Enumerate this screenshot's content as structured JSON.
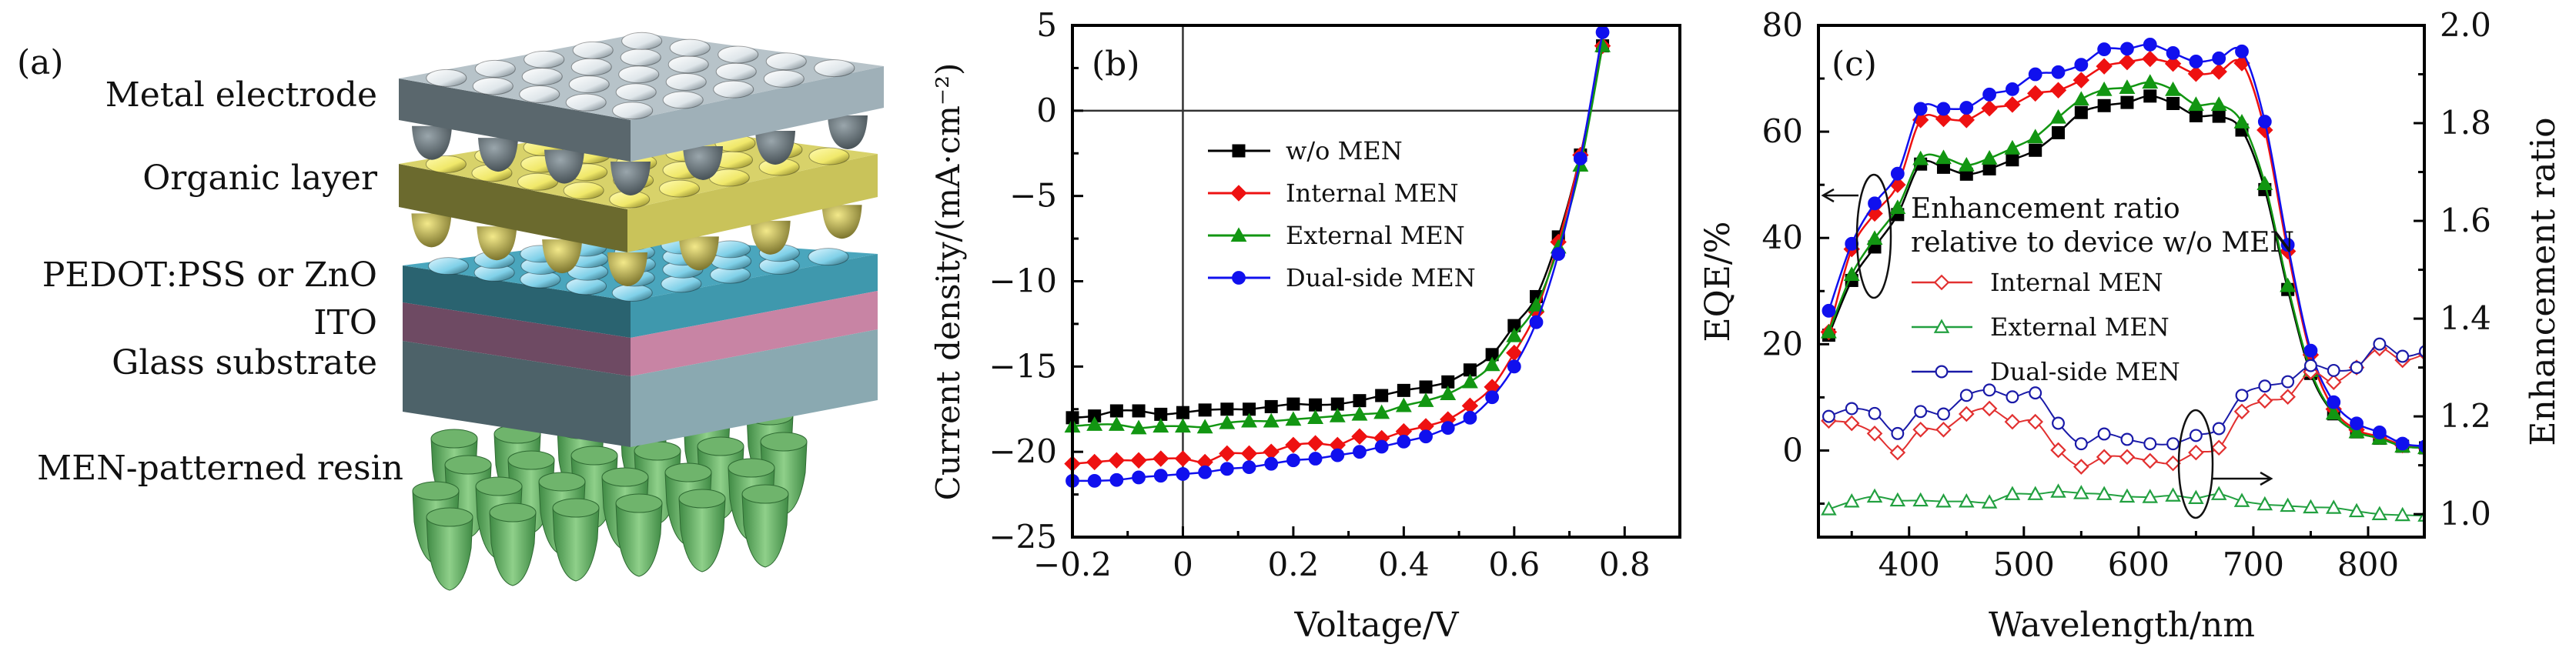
{
  "panel_a": {
    "tag": "(a)",
    "layers": [
      {
        "label": "Metal electrode",
        "color": "#9fb0b8"
      },
      {
        "label": "Organic layer",
        "color": "#cfc95a"
      },
      {
        "label": "PEDOT:PSS or ZnO",
        "color": "#3f98ad"
      },
      {
        "label": "ITO",
        "color": "#c884a4"
      },
      {
        "label": "Glass substrate",
        "color": "#8aa9b1"
      },
      {
        "label": "MEN-patterned resin",
        "color": "#6fb46c"
      }
    ]
  },
  "chart_data": [
    {
      "id": "b",
      "type": "line",
      "tag": "(b)",
      "title": "",
      "xlabel": "Voltage/V",
      "ylabel": "Current density/(mA·cm⁻²)",
      "xlim": [
        -0.2,
        0.9
      ],
      "ylim": [
        -25,
        5
      ],
      "xticks": [
        -0.2,
        0,
        0.2,
        0.4,
        0.6,
        0.8
      ],
      "xtick_labels": [
        "−0.2",
        "0",
        "0.2",
        "0.4",
        "0.6",
        "0.8"
      ],
      "yticks": [
        5,
        0,
        -5,
        -10,
        -15,
        -20,
        -25
      ],
      "ytick_labels": [
        "5",
        "0",
        "−5",
        "−10",
        "−15",
        "−20",
        "−25"
      ],
      "grid": false,
      "reference_lines": {
        "x": 0,
        "y": 0
      },
      "legend_position": "center",
      "x": [
        -0.2,
        -0.16,
        -0.12,
        -0.08,
        -0.04,
        0,
        0.04,
        0.08,
        0.12,
        0.16,
        0.2,
        0.24,
        0.28,
        0.32,
        0.36,
        0.4,
        0.44,
        0.48,
        0.52,
        0.56,
        0.6,
        0.64,
        0.68,
        0.72,
        0.76
      ],
      "series": [
        {
          "name": "w/o MEN",
          "color": "#000000",
          "marker": "square",
          "values": [
            -18.0,
            -17.9,
            -17.6,
            -17.6,
            -17.8,
            -17.7,
            -17.55,
            -17.5,
            -17.5,
            -17.35,
            -17.2,
            -17.25,
            -17.2,
            -17.0,
            -16.7,
            -16.4,
            -16.2,
            -15.9,
            -15.2,
            -14.3,
            -12.6,
            -10.9,
            -7.4,
            -2.6,
            3.8
          ]
        },
        {
          "name": "Internal MEN",
          "color": "#ee1111",
          "marker": "diamond",
          "values": [
            -20.7,
            -20.6,
            -20.5,
            -20.5,
            -20.4,
            -20.4,
            -20.6,
            -20.1,
            -20.1,
            -20.0,
            -19.6,
            -19.5,
            -19.6,
            -19.1,
            -19.2,
            -18.8,
            -18.5,
            -18.1,
            -17.3,
            -16.2,
            -14.2,
            -11.8,
            -7.7,
            -2.6,
            3.8
          ]
        },
        {
          "name": "External MEN",
          "color": "#129612",
          "marker": "triangle",
          "values": [
            -18.5,
            -18.4,
            -18.4,
            -18.6,
            -18.5,
            -18.5,
            -18.55,
            -18.3,
            -18.2,
            -18.2,
            -18.1,
            -18.0,
            -17.9,
            -17.8,
            -17.7,
            -17.3,
            -17.0,
            -16.6,
            -15.9,
            -14.9,
            -13.2,
            -11.4,
            -8.0,
            -3.2,
            3.8
          ]
        },
        {
          "name": "Dual-side MEN",
          "color": "#1010ee",
          "marker": "circle",
          "values": [
            -21.7,
            -21.7,
            -21.65,
            -21.5,
            -21.4,
            -21.3,
            -21.2,
            -21.0,
            -20.9,
            -20.7,
            -20.5,
            -20.4,
            -20.2,
            -20.0,
            -19.7,
            -19.4,
            -19.1,
            -18.6,
            -18.0,
            -16.8,
            -15.0,
            -12.4,
            -8.4,
            -2.8,
            4.6
          ]
        }
      ]
    },
    {
      "id": "c",
      "type": "line",
      "tag": "(c)",
      "title": "",
      "xlabel": "Wavelength/nm",
      "ylabel": "EQE/%",
      "y2label": "Enhancement ratio",
      "xlim": [
        321,
        849
      ],
      "ylim": [
        -16.3,
        80
      ],
      "y2lim": [
        0.953,
        2.0
      ],
      "xticks": [
        400,
        500,
        600,
        700,
        800
      ],
      "xtick_labels": [
        "400",
        "500",
        "600",
        "700",
        "800"
      ],
      "yticks": [
        0,
        20,
        40,
        60,
        80
      ],
      "ytick_labels": [
        "0",
        "20",
        "40",
        "60",
        "80"
      ],
      "y2ticks": [
        1.0,
        1.2,
        1.4,
        1.6,
        1.8,
        2.0
      ],
      "y2tick_labels": [
        "1.0",
        "1.2",
        "1.4",
        "1.6",
        "1.8",
        "2.0"
      ],
      "grid": false,
      "legend_title": [
        "Enhancement ratio",
        "relative to device w/o MEN"
      ],
      "legend_position": "center-left",
      "annotations": [
        "ellipse+arrow ← EQE axis (near 370 nm)",
        "ellipse+arrow → ratio axis (near 650 nm)"
      ],
      "x": [
        330,
        350,
        370,
        390,
        410,
        430,
        450,
        470,
        490,
        510,
        530,
        550,
        570,
        590,
        610,
        630,
        650,
        670,
        690,
        710,
        730,
        750,
        770,
        790,
        810,
        830,
        850
      ],
      "series": [
        {
          "name": "w/o MEN",
          "axis": "left",
          "color": "#000000",
          "marker": "square",
          "filled": true,
          "in_legend": false,
          "values": [
            21.7,
            32.0,
            38.3,
            44.4,
            53.9,
            53.3,
            52.0,
            53.0,
            54.7,
            56.5,
            59.8,
            63.6,
            64.9,
            65.5,
            66.7,
            65.3,
            63.0,
            62.9,
            60.3,
            49.1,
            30.3,
            14.5,
            6.9,
            3.5,
            2.3,
            0.8,
            0.5
          ]
        },
        {
          "name": "Internal MEN",
          "axis": "left",
          "color": "#ee1111",
          "marker": "diamond",
          "filled": true,
          "in_legend": false,
          "values": [
            22.3,
            37.9,
            44.6,
            50.0,
            62.2,
            62.4,
            62.2,
            64.4,
            65.1,
            67.2,
            67.8,
            69.7,
            72.3,
            73.1,
            73.7,
            72.8,
            70.9,
            71.3,
            72.9,
            60.3,
            37.5,
            18.0,
            7.8,
            3.9,
            2.6,
            1.0,
            0.5
          ]
        },
        {
          "name": "External MEN",
          "axis": "left",
          "color": "#129612",
          "marker": "triangle",
          "filled": true,
          "in_legend": false,
          "values": [
            22.3,
            33.1,
            39.9,
            45.7,
            54.9,
            55.1,
            53.7,
            55.0,
            56.9,
            59.0,
            62.7,
            66.1,
            67.9,
            68.3,
            69.3,
            67.9,
            65.1,
            65.1,
            61.8,
            50.2,
            31.0,
            15.0,
            7.0,
            3.5,
            2.3,
            0.8,
            0.5
          ]
        },
        {
          "name": "Dual-side MEN",
          "axis": "left",
          "color": "#1010ee",
          "marker": "circle",
          "filled": true,
          "in_legend": false,
          "values": [
            26.3,
            38.9,
            46.5,
            52.1,
            64.3,
            64.3,
            64.5,
            67.0,
            68.0,
            70.8,
            71.2,
            72.6,
            75.5,
            75.6,
            76.4,
            74.8,
            73.2,
            73.8,
            75.1,
            61.9,
            38.7,
            18.8,
            9.1,
            5.1,
            3.4,
            1.3,
            0.8
          ]
        },
        {
          "name": "Internal MEN",
          "axis": "right",
          "color": "#e23030",
          "marker": "diamond",
          "filled": false,
          "in_legend": true,
          "values": [
            1.191,
            1.186,
            1.165,
            1.126,
            1.173,
            1.173,
            1.205,
            1.216,
            1.189,
            1.189,
            1.131,
            1.097,
            1.117,
            1.117,
            1.109,
            1.104,
            1.126,
            1.136,
            1.21,
            1.232,
            1.24,
            1.291,
            1.27,
            1.3,
            1.339,
            1.315,
            1.328
          ]
        },
        {
          "name": "External MEN",
          "axis": "right",
          "color": "#22a040",
          "marker": "triangle",
          "filled": false,
          "in_legend": true,
          "values": [
            1.01,
            1.026,
            1.036,
            1.028,
            1.028,
            1.026,
            1.026,
            1.024,
            1.041,
            1.041,
            1.046,
            1.043,
            1.041,
            1.036,
            1.035,
            1.038,
            1.033,
            1.041,
            1.027,
            1.02,
            1.017,
            1.014,
            1.013,
            1.006,
            1.0,
            0.998,
            0.997
          ]
        },
        {
          "name": "Dual-side MEN",
          "axis": "right",
          "color": "#1a1aa8",
          "marker": "circle",
          "filled": false,
          "in_legend": true,
          "values": [
            1.2,
            1.216,
            1.206,
            1.165,
            1.21,
            1.205,
            1.243,
            1.254,
            1.24,
            1.248,
            1.186,
            1.144,
            1.164,
            1.153,
            1.144,
            1.144,
            1.161,
            1.175,
            1.243,
            1.262,
            1.271,
            1.304,
            1.294,
            1.3,
            1.348,
            1.323,
            1.333
          ]
        }
      ]
    }
  ]
}
